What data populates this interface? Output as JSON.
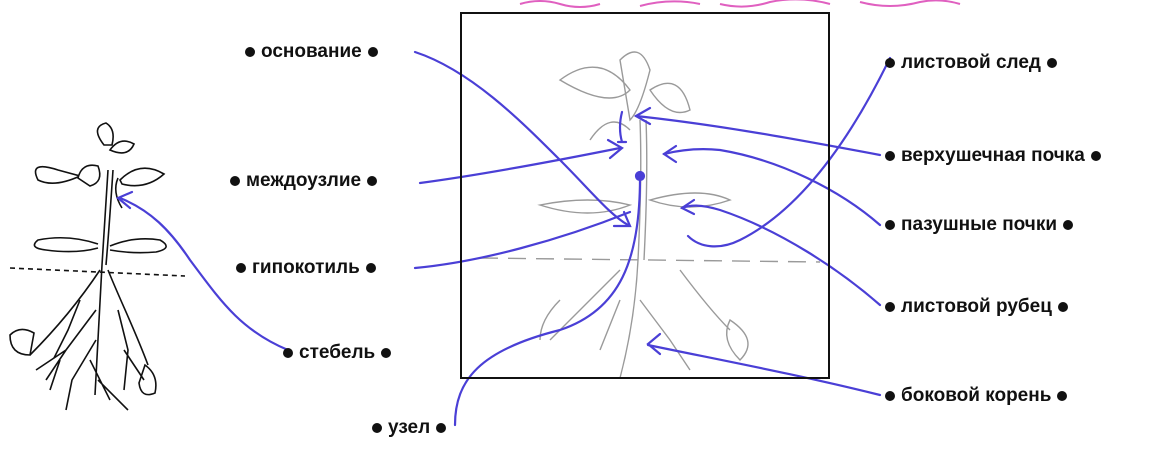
{
  "labels": {
    "osnovanie": "основание",
    "mezhdouzlie": "междоузлие",
    "gipokotil": "гипокотиль",
    "stebel": "стебель",
    "uzel": "узел",
    "listovoy_sled": "листовой след",
    "verkhushechnaya_pochka": "верхушечная почка",
    "pazushnye_pochki": "пазушные почки",
    "listovoy_rubets": "листовой рубец",
    "bokovoy_koren": "боковой корень"
  },
  "colors": {
    "arrow": "#4a3fd6",
    "pencil": "#9a9a9a",
    "header_pink": "#e060c0"
  }
}
